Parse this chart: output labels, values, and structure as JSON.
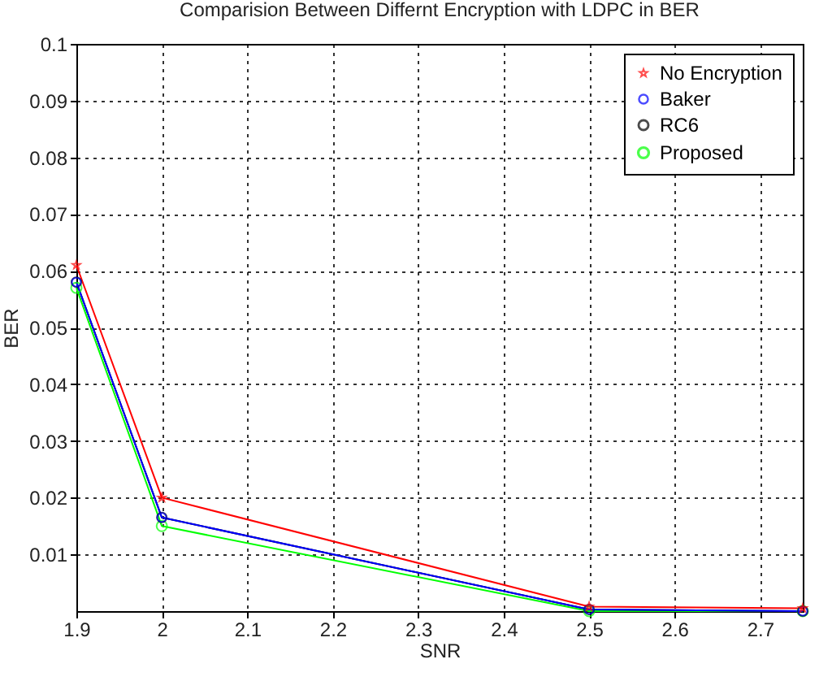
{
  "chart_data": {
    "type": "line",
    "title": "Comparision Between Differnt Encryption with LDPC in BER",
    "xlabel": "SNR",
    "ylabel": "BER",
    "x": [
      1.9,
      2,
      2.5,
      2.75
    ],
    "series": [
      {
        "name": "No Encryption",
        "color": "#ff0000",
        "marker": "star",
        "values": [
          0.061,
          0.02,
          0.0008,
          0.0005
        ]
      },
      {
        "name": "Baker",
        "color": "#0000ff",
        "marker": "circle",
        "values": [
          0.058,
          0.0165,
          0.0003,
          0
        ]
      },
      {
        "name": "RC6",
        "color": "#000000",
        "marker": "circle",
        "values": [
          0.058,
          0.0165,
          0.0003,
          0
        ]
      },
      {
        "name": "Proposed",
        "color": "#00ff00",
        "marker": "circle",
        "values": [
          0.057,
          0.015,
          0,
          0
        ]
      }
    ],
    "xlim": [
      1.9,
      2.75
    ],
    "ylim": [
      0,
      0.1
    ],
    "xticks": [
      1.9,
      {
        "value": 2,
        "label": "2"
      },
      2.1,
      2.2,
      2.3,
      2.4,
      2.5,
      2.6,
      2.7
    ],
    "yticks": [
      0.01,
      0.02,
      0.03,
      0.04,
      0.05,
      0.06,
      0.07,
      0.08,
      0.09,
      {
        "value": 0.1,
        "label": "0.1"
      }
    ],
    "grid": true,
    "legend": "top right",
    "line_style": "solid"
  }
}
